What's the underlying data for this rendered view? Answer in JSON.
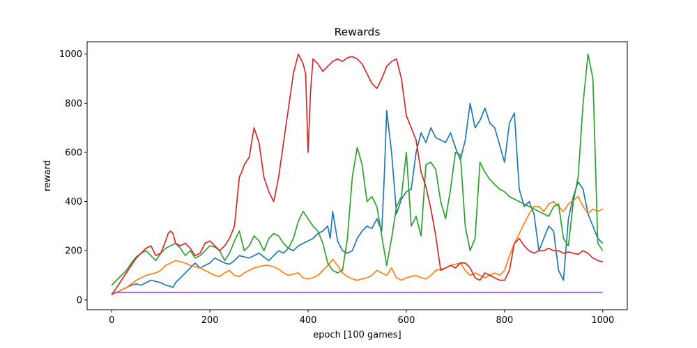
{
  "chart_data": {
    "type": "line",
    "title": "Rewards",
    "xlabel": "epoch [100 games]",
    "ylabel": "reward",
    "xlim": [
      -50,
      1050
    ],
    "ylim": [
      -40,
      1050
    ],
    "xticks": [
      0,
      200,
      400,
      600,
      800,
      1000
    ],
    "yticks": [
      0,
      200,
      400,
      600,
      800,
      1000
    ],
    "grid": false,
    "legend": "none",
    "series": [
      {
        "color": "#1f77b4",
        "x": [
          0,
          10,
          20,
          30,
          40,
          50,
          60,
          70,
          80,
          90,
          100,
          110,
          120,
          125,
          130,
          140,
          150,
          160,
          170,
          180,
          190,
          200,
          210,
          220,
          230,
          240,
          250,
          260,
          270,
          280,
          290,
          300,
          310,
          320,
          330,
          340,
          350,
          360,
          370,
          380,
          390,
          400,
          410,
          420,
          430,
          440,
          445,
          450,
          460,
          470,
          480,
          490,
          500,
          510,
          520,
          530,
          540,
          550,
          555,
          560,
          570,
          580,
          590,
          600,
          610,
          620,
          630,
          640,
          650,
          660,
          670,
          680,
          690,
          700,
          710,
          720,
          730,
          740,
          750,
          760,
          770,
          780,
          790,
          800,
          810,
          820,
          830,
          840,
          850,
          860,
          870,
          880,
          890,
          900,
          910,
          920,
          930,
          940,
          950,
          960,
          970,
          980,
          990,
          1000
        ],
        "y": [
          20,
          30,
          40,
          50,
          60,
          65,
          60,
          70,
          80,
          75,
          70,
          60,
          55,
          50,
          70,
          90,
          110,
          130,
          150,
          130,
          140,
          150,
          170,
          160,
          150,
          145,
          160,
          180,
          175,
          170,
          180,
          190,
          175,
          160,
          180,
          200,
          190,
          210,
          200,
          220,
          230,
          240,
          250,
          270,
          280,
          300,
          250,
          360,
          240,
          200,
          190,
          200,
          250,
          280,
          300,
          290,
          330,
          280,
          500,
          770,
          600,
          350,
          410,
          440,
          450,
          600,
          680,
          640,
          700,
          660,
          650,
          640,
          680,
          620,
          570,
          650,
          800,
          700,
          730,
          780,
          720,
          700,
          630,
          560,
          720,
          760,
          450,
          380,
          400,
          350,
          200,
          250,
          300,
          280,
          120,
          80,
          330,
          420,
          480,
          450,
          350,
          300,
          250,
          230
        ]
      },
      {
        "color": "#ff7f0e",
        "x": [
          0,
          10,
          20,
          30,
          40,
          50,
          60,
          70,
          80,
          90,
          100,
          110,
          120,
          130,
          140,
          150,
          160,
          170,
          180,
          190,
          200,
          210,
          220,
          230,
          240,
          250,
          260,
          270,
          280,
          290,
          300,
          310,
          320,
          330,
          340,
          350,
          360,
          370,
          380,
          390,
          400,
          410,
          420,
          430,
          440,
          450,
          460,
          470,
          480,
          490,
          500,
          510,
          520,
          530,
          540,
          550,
          560,
          570,
          580,
          590,
          600,
          610,
          620,
          630,
          640,
          650,
          660,
          670,
          680,
          690,
          700,
          710,
          720,
          730,
          740,
          750,
          760,
          770,
          780,
          790,
          800,
          810,
          820,
          830,
          840,
          850,
          860,
          870,
          880,
          890,
          900,
          910,
          920,
          930,
          940,
          950,
          960,
          970,
          980,
          990,
          1000
        ],
        "y": [
          20,
          30,
          40,
          50,
          65,
          80,
          90,
          100,
          105,
          110,
          120,
          140,
          150,
          160,
          155,
          150,
          140,
          135,
          130,
          120,
          110,
          100,
          95,
          110,
          120,
          100,
          95,
          110,
          120,
          130,
          135,
          140,
          140,
          135,
          125,
          110,
          100,
          105,
          110,
          90,
          85,
          90,
          100,
          120,
          140,
          165,
          140,
          110,
          95,
          85,
          80,
          85,
          90,
          100,
          120,
          110,
          100,
          130,
          90,
          80,
          90,
          95,
          100,
          90,
          85,
          100,
          120,
          125,
          130,
          140,
          145,
          150,
          120,
          100,
          110,
          100,
          90,
          100,
          110,
          100,
          120,
          180,
          230,
          270,
          310,
          350,
          380,
          380,
          360,
          390,
          400,
          380,
          360,
          390,
          405,
          420,
          380,
          350,
          370,
          360,
          370
        ]
      },
      {
        "color": "#2ca02c",
        "x": [
          0,
          10,
          20,
          30,
          40,
          50,
          60,
          70,
          80,
          90,
          100,
          110,
          120,
          130,
          140,
          150,
          160,
          170,
          180,
          190,
          200,
          210,
          220,
          230,
          240,
          250,
          260,
          270,
          280,
          290,
          300,
          310,
          320,
          330,
          340,
          350,
          360,
          370,
          380,
          390,
          400,
          410,
          420,
          430,
          440,
          450,
          460,
          470,
          480,
          490,
          500,
          510,
          520,
          530,
          540,
          550,
          560,
          570,
          580,
          590,
          600,
          610,
          620,
          630,
          640,
          650,
          660,
          670,
          680,
          690,
          700,
          710,
          720,
          730,
          740,
          750,
          760,
          770,
          780,
          790,
          800,
          810,
          820,
          830,
          840,
          850,
          860,
          870,
          880,
          890,
          900,
          910,
          920,
          930,
          940,
          950,
          960,
          970,
          980,
          990,
          1000
        ],
        "y": [
          60,
          80,
          100,
          120,
          150,
          175,
          190,
          200,
          180,
          160,
          190,
          210,
          220,
          230,
          210,
          180,
          200,
          170,
          180,
          200,
          220,
          215,
          200,
          160,
          190,
          240,
          280,
          200,
          220,
          260,
          240,
          200,
          250,
          270,
          260,
          230,
          210,
          250,
          320,
          360,
          330,
          300,
          280,
          230,
          150,
          120,
          110,
          120,
          250,
          500,
          620,
          550,
          400,
          420,
          380,
          260,
          140,
          250,
          380,
          420,
          600,
          300,
          340,
          260,
          550,
          560,
          530,
          400,
          330,
          450,
          600,
          590,
          300,
          200,
          250,
          560,
          520,
          490,
          470,
          450,
          440,
          420,
          410,
          400,
          390,
          380,
          370,
          360,
          350,
          340,
          380,
          390,
          250,
          220,
          400,
          500,
          800,
          1000,
          900,
          230,
          200
        ]
      },
      {
        "color": "#d62728",
        "x": [
          0,
          10,
          20,
          30,
          40,
          50,
          60,
          70,
          80,
          90,
          100,
          110,
          115,
          120,
          125,
          130,
          140,
          150,
          160,
          170,
          180,
          190,
          200,
          210,
          220,
          230,
          240,
          250,
          260,
          265,
          270,
          280,
          290,
          300,
          310,
          320,
          330,
          340,
          350,
          360,
          370,
          380,
          390,
          395,
          400,
          405,
          410,
          420,
          430,
          440,
          450,
          460,
          470,
          480,
          490,
          500,
          510,
          520,
          530,
          540,
          550,
          560,
          570,
          580,
          590,
          600,
          610,
          620,
          630,
          640,
          650,
          660,
          670,
          680,
          690,
          700,
          710,
          720,
          730,
          740,
          750,
          760,
          770,
          780,
          790,
          800,
          810,
          820,
          830,
          840,
          850,
          860,
          870,
          880,
          890,
          900,
          910,
          920,
          930,
          940,
          950,
          960,
          970,
          980,
          990,
          1000
        ],
        "y": [
          20,
          50,
          80,
          110,
          140,
          170,
          190,
          210,
          220,
          180,
          190,
          240,
          270,
          280,
          270,
          230,
          220,
          230,
          210,
          180,
          190,
          230,
          240,
          220,
          200,
          220,
          250,
          300,
          500,
          520,
          550,
          580,
          700,
          640,
          500,
          440,
          400,
          500,
          640,
          780,
          920,
          1000,
          960,
          920,
          600,
          850,
          980,
          960,
          930,
          950,
          970,
          980,
          970,
          985,
          990,
          980,
          960,
          920,
          880,
          860,
          900,
          950,
          970,
          980,
          900,
          750,
          700,
          650,
          520,
          460,
          370,
          260,
          120,
          130,
          140,
          130,
          150,
          150,
          130,
          90,
          80,
          110,
          100,
          90,
          80,
          80,
          120,
          230,
          250,
          220,
          200,
          190,
          200,
          200,
          210,
          200,
          200,
          190,
          195,
          190,
          185,
          200,
          190,
          170,
          160,
          155
        ]
      },
      {
        "color": "#9467bd",
        "x": [
          0,
          50,
          100,
          150,
          200,
          250,
          300,
          350,
          400,
          450,
          500,
          550,
          600,
          650,
          700,
          750,
          800,
          850,
          900,
          950,
          1000
        ],
        "y": [
          30,
          30,
          30,
          30,
          30,
          30,
          30,
          30,
          30,
          30,
          30,
          30,
          30,
          30,
          30,
          30,
          30,
          30,
          30,
          30,
          30
        ]
      }
    ]
  }
}
